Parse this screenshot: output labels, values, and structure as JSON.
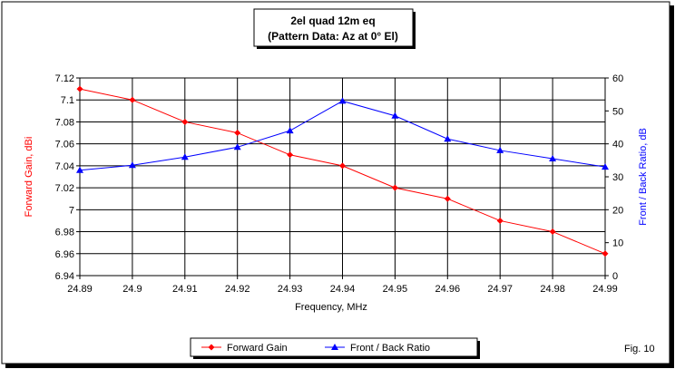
{
  "chart_data": {
    "type": "line",
    "title_lines": [
      "2el quad 12m eq",
      "(Pattern Data: Az at 0° El)"
    ],
    "xlabel": "Frequency, MHz",
    "ylabel_left": "Forward Gain, dBi",
    "ylabel_right": "Front / Back Ratio, dB",
    "x": [
      24.89,
      24.9,
      24.91,
      24.92,
      24.93,
      24.94,
      24.95,
      24.96,
      24.97,
      24.98,
      24.99
    ],
    "x_tick_labels": [
      "24.89",
      "24.9",
      "24.91",
      "24.92",
      "24.93",
      "24.94",
      "24.95",
      "24.96",
      "24.97",
      "24.98",
      "24.99"
    ],
    "ylim_left": [
      6.94,
      7.12
    ],
    "ylim_right": [
      0,
      60
    ],
    "y_left_ticks": [
      6.94,
      6.96,
      6.98,
      7.0,
      7.02,
      7.04,
      7.06,
      7.08,
      7.1,
      7.12
    ],
    "y_left_tick_labels": [
      "6.94",
      "6.96",
      "6.98",
      "7",
      "7.02",
      "7.04",
      "7.06",
      "7.08",
      "7.1",
      "7.12"
    ],
    "y_right_ticks": [
      0,
      10,
      20,
      30,
      40,
      50,
      60
    ],
    "y_right_tick_labels": [
      "0",
      "10",
      "20",
      "30",
      "40",
      "50",
      "60"
    ],
    "grid": true,
    "legend_position": "bottom-center",
    "series": [
      {
        "name": "Forward Gain",
        "axis": "left",
        "color": "#ff0000",
        "marker": "diamond",
        "values": [
          7.11,
          7.1,
          7.08,
          7.07,
          7.05,
          7.04,
          7.02,
          7.01,
          6.99,
          6.98,
          6.96
        ]
      },
      {
        "name": "Front / Back Ratio",
        "axis": "right",
        "color": "#0000ff",
        "marker": "triangle",
        "values": [
          32,
          33.5,
          36,
          39,
          44,
          53,
          48.5,
          41.5,
          38,
          35.5,
          33
        ]
      }
    ],
    "annotation": "Fig. 10"
  }
}
